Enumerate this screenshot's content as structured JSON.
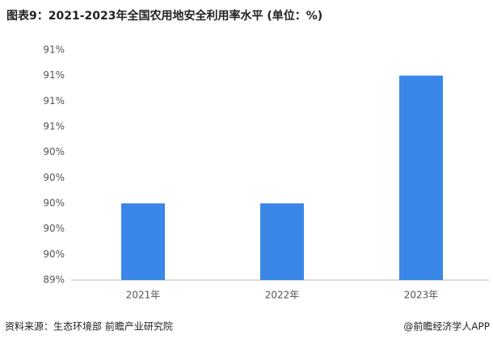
{
  "chart_data": {
    "type": "bar",
    "title": "图表9：2021-2023年全国农用地安全利用率水平 (单位：%)",
    "categories": [
      "2021年",
      "2022年",
      "2023年"
    ],
    "values": [
      90.0,
      90.0,
      91.0
    ],
    "color": "#3a87e8",
    "ylim": [
      89.4,
      91.2
    ],
    "yticks": [
      {
        "value": 89.4,
        "label": "89%"
      },
      {
        "value": 89.6,
        "label": "90%"
      },
      {
        "value": 89.8,
        "label": "90%"
      },
      {
        "value": 90.0,
        "label": "90%"
      },
      {
        "value": 90.2,
        "label": "90%"
      },
      {
        "value": 90.4,
        "label": "90%"
      },
      {
        "value": 90.6,
        "label": "91%"
      },
      {
        "value": 90.8,
        "label": "91%"
      },
      {
        "value": 91.0,
        "label": "91%"
      },
      {
        "value": 91.2,
        "label": "91%"
      }
    ],
    "grid": false,
    "source": "资料来源：生态环境部 前瞻产业研究院",
    "credit": "@前瞻经济学人APP"
  }
}
